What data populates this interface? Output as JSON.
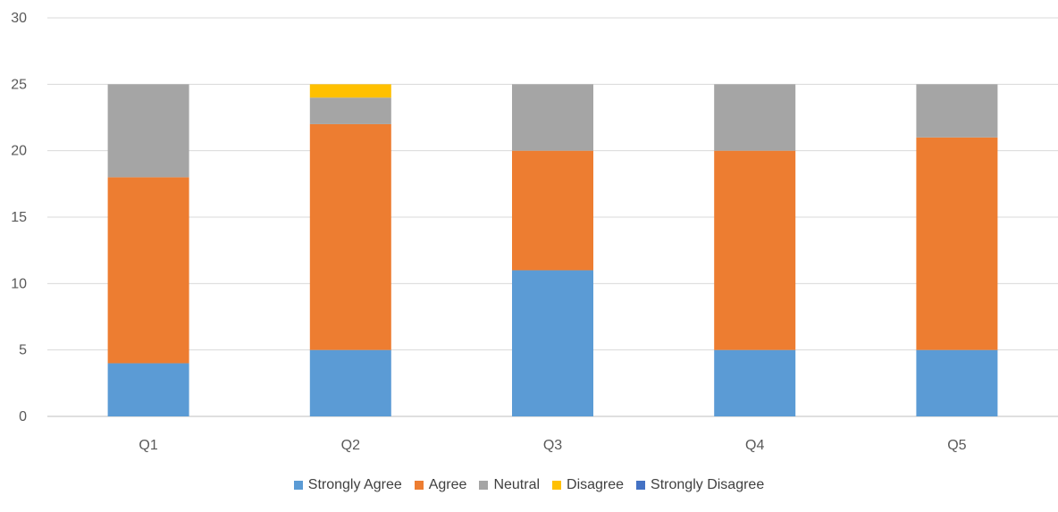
{
  "chart_data": {
    "type": "bar",
    "stacked": true,
    "title": "",
    "xlabel": "",
    "ylabel": "",
    "categories": [
      "Q1",
      "Q2",
      "Q3",
      "Q4",
      "Q5"
    ],
    "ylim": [
      0,
      30
    ],
    "yticks": [
      0,
      5,
      10,
      15,
      20,
      25,
      30
    ],
    "grid": true,
    "legend_position": "bottom",
    "series": [
      {
        "name": "Strongly Agree",
        "color": "#5B9BD5",
        "values": [
          4,
          5,
          11,
          5,
          5
        ]
      },
      {
        "name": "Agree",
        "color": "#ED7D31",
        "values": [
          14,
          17,
          9,
          15,
          16
        ]
      },
      {
        "name": "Neutral",
        "color": "#A5A5A5",
        "values": [
          7,
          2,
          5,
          5,
          4
        ]
      },
      {
        "name": "Disagree",
        "color": "#FFC000",
        "values": [
          0,
          1,
          0,
          0,
          0
        ]
      },
      {
        "name": "Strongly Disagree",
        "color": "#4472C4",
        "values": [
          0,
          0,
          0,
          0,
          0
        ]
      }
    ]
  }
}
